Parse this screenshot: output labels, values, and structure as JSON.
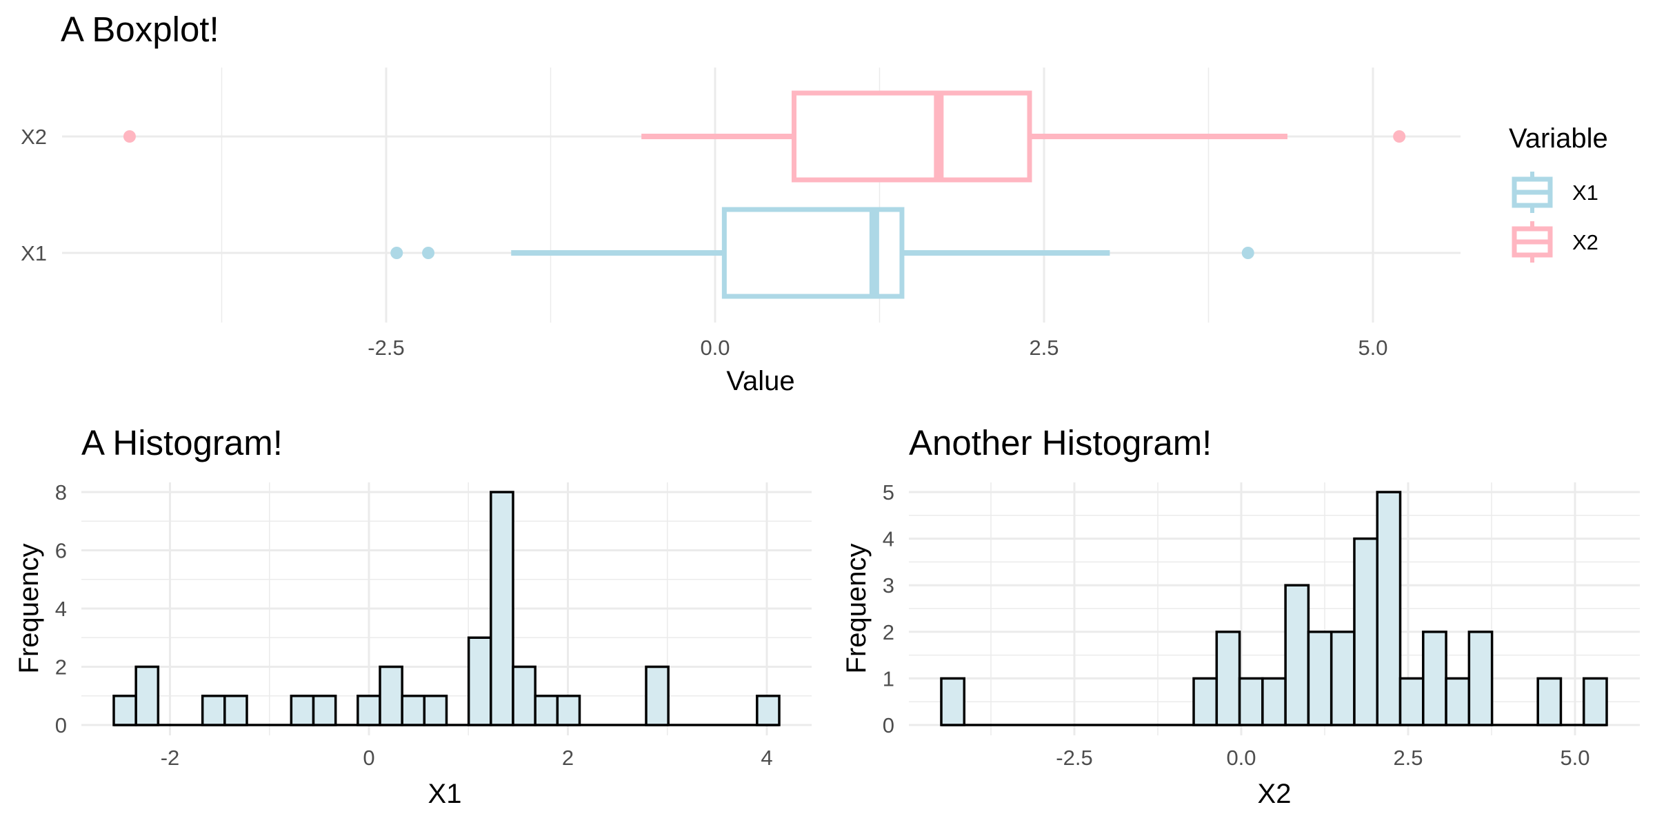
{
  "chart_data": [
    {
      "type": "boxplot",
      "title": "A Boxplot!",
      "xlabel": "Value",
      "ylabel": "",
      "xlim": [
        -4.45,
        5.7
      ],
      "x_ticks": [
        -2.5,
        0.0,
        2.5,
        5.0
      ],
      "x_tick_labels": [
        "-2.5",
        "0.0",
        "2.5",
        "5.0"
      ],
      "categories": [
        "X2",
        "X1"
      ],
      "grid": true,
      "legend": {
        "title": "Variable",
        "position": "right"
      },
      "series": [
        {
          "name": "X2",
          "color": "#FFB6C1",
          "whisker_low": -0.56,
          "q1": 0.6,
          "median": 1.7,
          "q3": 2.39,
          "whisker_high": 4.35,
          "outliers": [
            -4.45,
            5.2
          ]
        },
        {
          "name": "X1",
          "color": "#ADD8E6",
          "whisker_low": -1.55,
          "q1": 0.07,
          "median": 1.21,
          "q3": 1.42,
          "whisker_high": 3.0,
          "outliers": [
            -2.42,
            -2.18,
            4.05
          ]
        }
      ]
    },
    {
      "type": "bar",
      "subtype": "histogram",
      "title": "A Histogram!",
      "xlabel": "X1",
      "ylabel": "Frequency",
      "xlim": [
        -2.6,
        4.1
      ],
      "ylim": [
        0,
        8
      ],
      "x_ticks": [
        -2,
        0,
        2,
        4
      ],
      "x_tick_labels": [
        "-2",
        "0",
        "2",
        "4"
      ],
      "y_ticks": [
        0,
        2,
        4,
        6,
        8
      ],
      "y_tick_labels": [
        "0",
        "2",
        "4",
        "6",
        "8"
      ],
      "grid": true,
      "fill": "#D6EAF0",
      "bin_width": 0.2233,
      "bin_start": -2.6,
      "counts": [
        1,
        2,
        0,
        0,
        1,
        1,
        0,
        0,
        1,
        1,
        0,
        1,
        2,
        1,
        1,
        0,
        3,
        8,
        2,
        1,
        1,
        0,
        0,
        0,
        2,
        0,
        0,
        0,
        0,
        1
      ]
    },
    {
      "type": "bar",
      "subtype": "histogram",
      "title": "Another Histogram!",
      "xlabel": "X2",
      "ylabel": "Frequency",
      "xlim": [
        -4.45,
        5.45
      ],
      "ylim": [
        0,
        5
      ],
      "x_ticks": [
        -2.5,
        0.0,
        2.5,
        5.0
      ],
      "x_tick_labels": [
        "-2.5",
        "0.0",
        "2.5",
        "5.0"
      ],
      "y_ticks": [
        0,
        1,
        2,
        3,
        4,
        5
      ],
      "y_tick_labels": [
        "0",
        "1",
        "2",
        "3",
        "4",
        "5"
      ],
      "grid": true,
      "fill": "#D6EAF0",
      "bin_width": 0.33,
      "bin_start": -4.45,
      "counts": [
        1,
        0,
        0,
        0,
        0,
        0,
        0,
        0,
        0,
        0,
        0,
        1,
        2,
        1,
        1,
        3,
        2,
        2,
        4,
        5,
        1,
        2,
        1,
        2,
        0,
        0,
        1,
        0,
        1
      ]
    }
  ]
}
